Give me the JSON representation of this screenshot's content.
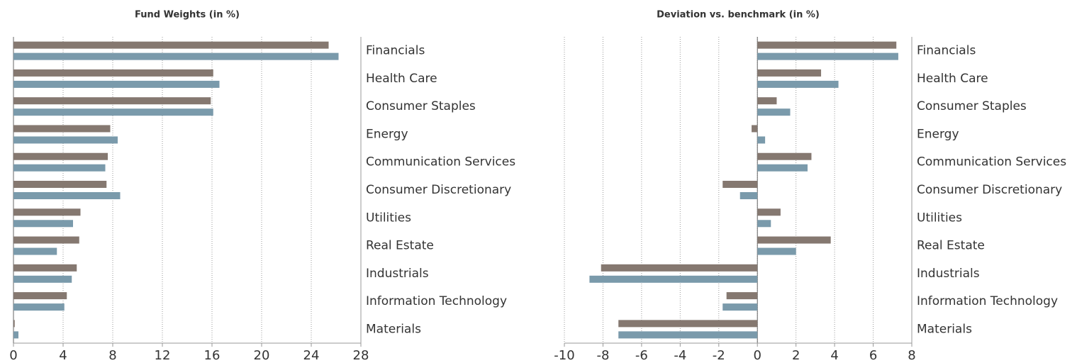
{
  "chart_data": [
    {
      "type": "bar",
      "title": "Fund Weights (in %)",
      "categories": [
        "Financials",
        "Health Care",
        "Consumer Staples",
        "Energy",
        "Communication Services",
        "Consumer Discretionary",
        "Utilities",
        "Real Estate",
        "Industrials",
        "Information Technology",
        "Materials"
      ],
      "series": [
        {
          "color": "#857870",
          "values": [
            25.4,
            16.1,
            15.9,
            7.8,
            7.6,
            7.5,
            5.4,
            5.3,
            5.1,
            4.3,
            0.1
          ]
        },
        {
          "color": "#7a9aab",
          "values": [
            26.2,
            16.6,
            16.1,
            8.4,
            7.4,
            8.6,
            4.8,
            3.5,
            4.7,
            4.1,
            0.4
          ]
        }
      ],
      "xlim": [
        0,
        28
      ],
      "xticks": [
        0,
        4,
        8,
        12,
        16,
        20,
        24,
        28
      ],
      "grid": true
    },
    {
      "type": "bar",
      "title": "Deviation vs. benchmark (in %)",
      "categories": [
        "Financials",
        "Health Care",
        "Consumer Staples",
        "Energy",
        "Communication Services",
        "Consumer Discretionary",
        "Utilities",
        "Real Estate",
        "Industrials",
        "Information Technology",
        "Materials"
      ],
      "series": [
        {
          "color": "#857870",
          "values": [
            7.2,
            3.3,
            1.0,
            -0.3,
            2.8,
            -1.8,
            1.2,
            3.8,
            -8.1,
            -1.6,
            -7.2
          ]
        },
        {
          "color": "#7a9aab",
          "values": [
            7.3,
            4.2,
            1.7,
            0.4,
            2.6,
            -0.9,
            0.7,
            2.0,
            -8.7,
            -1.8,
            -7.2
          ]
        }
      ],
      "xlim": [
        -10,
        8
      ],
      "xticks": [
        -10,
        -8,
        -6,
        -4,
        -2,
        0,
        2,
        4,
        6,
        8
      ],
      "grid": true
    }
  ]
}
